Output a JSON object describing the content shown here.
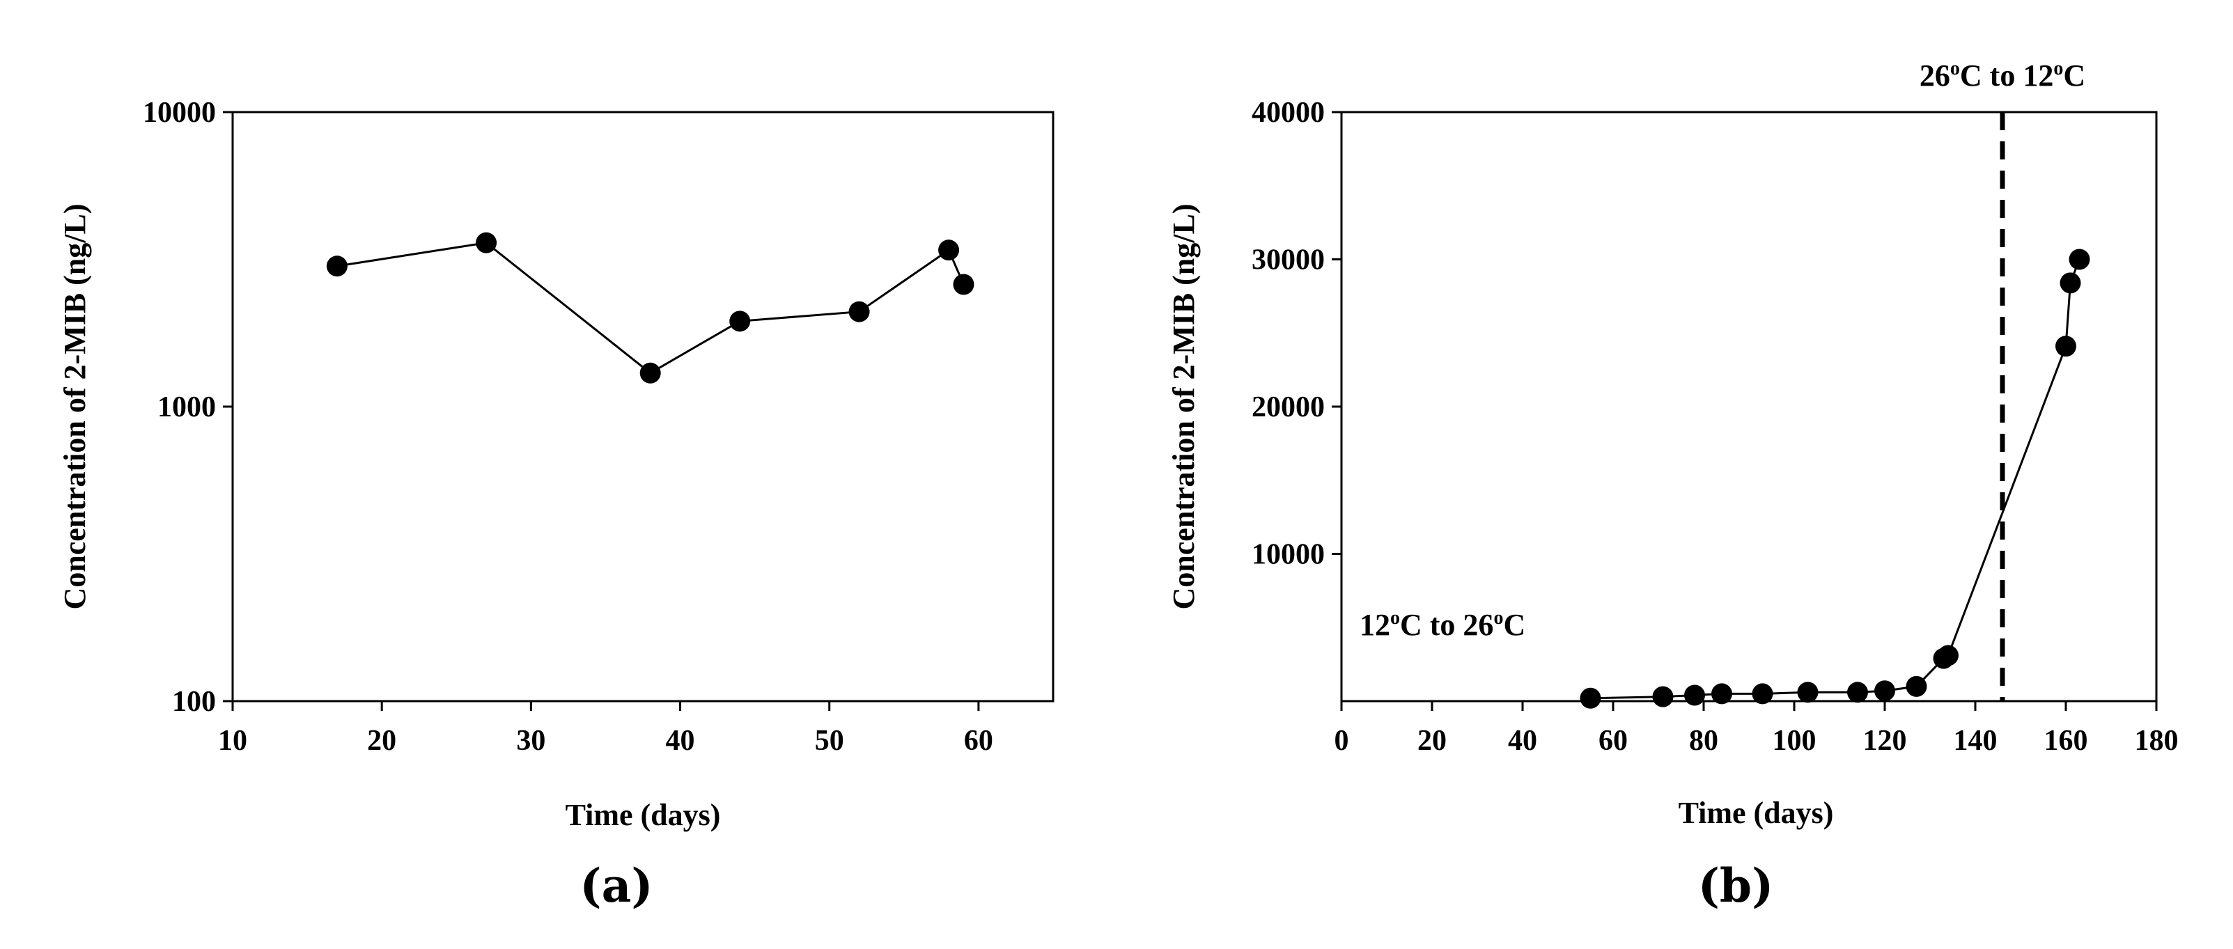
{
  "chart_data": [
    {
      "type": "line",
      "panel_label": "(a)",
      "xlabel": "Time (days)",
      "ylabel": "Concentration of 2-MIB (ng/L)",
      "xscale": "linear",
      "yscale": "log",
      "xlim": [
        10,
        65
      ],
      "ylim": [
        100,
        10000
      ],
      "xticks": [
        10,
        20,
        30,
        40,
        50,
        60
      ],
      "xtick_labels": [
        "10",
        "20",
        "30",
        "40",
        "50",
        "60"
      ],
      "yticks": [
        100,
        1000,
        10000
      ],
      "ytick_labels": [
        "100",
        "1000",
        "10000"
      ],
      "grid": false,
      "series": [
        {
          "name": "2-MIB",
          "x": [
            17,
            27,
            38,
            44,
            52,
            58,
            59
          ],
          "y": [
            3000,
            3600,
            1300,
            1950,
            2100,
            3400,
            2600
          ]
        }
      ]
    },
    {
      "type": "line",
      "panel_label": "(b)",
      "xlabel": "Time (days)",
      "ylabel": "Concentration of 2-MIB (ng/L)",
      "xscale": "linear",
      "yscale": "linear",
      "xlim": [
        0,
        180
      ],
      "ylim": [
        0,
        40000
      ],
      "xticks": [
        0,
        20,
        40,
        60,
        80,
        100,
        120,
        140,
        160,
        180
      ],
      "xtick_labels": [
        "0",
        "20",
        "40",
        "60",
        "80",
        "100",
        "120",
        "140",
        "160",
        "180"
      ],
      "yticks": [
        10000,
        20000,
        30000,
        40000
      ],
      "ytick_labels": [
        "10000",
        "20000",
        "30000",
        "40000"
      ],
      "grid": false,
      "series": [
        {
          "name": "2-MIB",
          "x": [
            55,
            71,
            78,
            84,
            93,
            103,
            114,
            120,
            127,
            133,
            134,
            160,
            161,
            163
          ],
          "y": [
            200,
            300,
            400,
            500,
            500,
            600,
            600,
            700,
            1000,
            2900,
            3100,
            24100,
            28400,
            30000
          ]
        }
      ],
      "vline": {
        "x": 146,
        "style": "dashed"
      },
      "annotations": [
        {
          "text": "12",
          "sup": "o",
          "rest": "C to 26",
          "sup2": "o",
          "rest2": "C",
          "full": "12oC to 26oC",
          "at_x": 4,
          "at_y": 4500
        },
        {
          "text": "26",
          "sup": "o",
          "rest": "C to 12",
          "sup2": "o",
          "rest2": "C",
          "full": "26oC to 12oC",
          "at_x": 146,
          "at_y": 41800
        }
      ]
    }
  ]
}
